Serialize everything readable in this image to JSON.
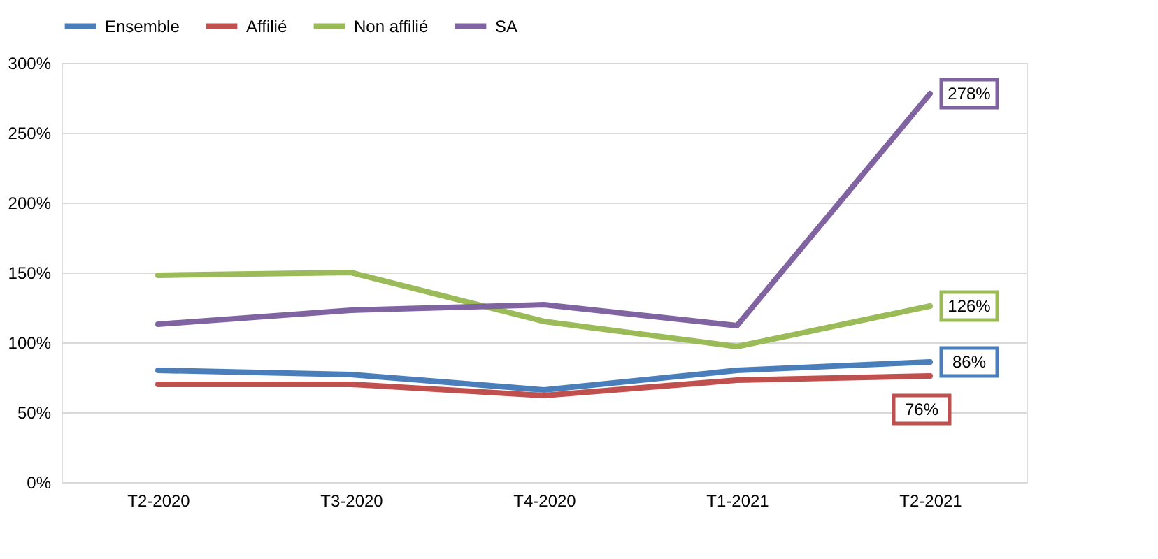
{
  "chart_data": {
    "type": "line",
    "categories": [
      "T2-2020",
      "T3-2020",
      "T4-2020",
      "T1-2021",
      "T2-2021"
    ],
    "series": [
      {
        "name": "Ensemble",
        "color": "#4a7ebb",
        "values": [
          80,
          77,
          66,
          80,
          86
        ],
        "value_labels": [
          null,
          null,
          null,
          null,
          "86%"
        ]
      },
      {
        "name": "Affilié",
        "color": "#c0504d",
        "values": [
          70,
          70,
          62,
          73,
          76
        ],
        "value_labels": [
          null,
          null,
          null,
          null,
          "76%"
        ]
      },
      {
        "name": "Non affilié",
        "color": "#9bbb59",
        "values": [
          148,
          150,
          115,
          97,
          126
        ],
        "value_labels": [
          null,
          null,
          null,
          null,
          "126%"
        ]
      },
      {
        "name": "SA",
        "color": "#8064a2",
        "values": [
          113,
          123,
          127,
          112,
          278
        ],
        "value_labels": [
          null,
          null,
          null,
          null,
          "278%"
        ]
      }
    ],
    "ylim": [
      0,
      300
    ],
    "yticks": [
      {
        "value": 0,
        "label": "0%"
      },
      {
        "value": 50,
        "label": "50%"
      },
      {
        "value": 100,
        "label": "100%"
      },
      {
        "value": 150,
        "label": "150%"
      },
      {
        "value": 200,
        "label": "200%"
      },
      {
        "value": 250,
        "label": "250%"
      },
      {
        "value": 300,
        "label": "300%"
      }
    ],
    "grid": "y",
    "legend": "top",
    "marker": "none",
    "line_style": "solid"
  }
}
